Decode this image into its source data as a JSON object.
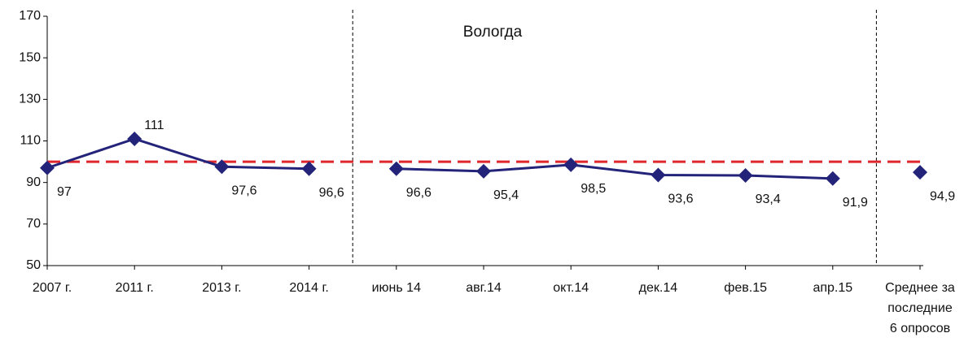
{
  "chart_data": {
    "type": "line",
    "title": "Вологда",
    "categories": [
      "2007 г.",
      "2011 г.",
      "2013 г.",
      "2014 г.",
      "июнь 14",
      "авг.14",
      "окт.14",
      "дек.14",
      "фев.15",
      "апр.15",
      "Среднее за\nпоследние\n6 опросов"
    ],
    "series": [
      {
        "color": "#23237a",
        "values": [
          97,
          111,
          97.6,
          96.6,
          null,
          null,
          null,
          null,
          null,
          null,
          null
        ],
        "value_labels": [
          "97",
          "111",
          "97,6",
          "96,6",
          null,
          null,
          null,
          null,
          null,
          null,
          null
        ]
      },
      {
        "color": "#23237a",
        "values": [
          null,
          null,
          null,
          null,
          96.6,
          95.4,
          98.5,
          93.6,
          93.4,
          91.9,
          null
        ],
        "value_labels": [
          null,
          null,
          null,
          null,
          "96,6",
          "95,4",
          "98,5",
          "93,6",
          "93,4",
          "91,9",
          null
        ]
      },
      {
        "color": "#23237a",
        "values": [
          null,
          null,
          null,
          null,
          null,
          null,
          null,
          null,
          null,
          null,
          94.9
        ],
        "value_labels": [
          null,
          null,
          null,
          null,
          null,
          null,
          null,
          null,
          null,
          null,
          "94,9"
        ]
      }
    ],
    "reference_line": 100,
    "reference_color": "#e0262b",
    "ylim": [
      50,
      170
    ],
    "yticks": [
      50,
      70,
      90,
      110,
      130,
      150,
      170
    ]
  }
}
